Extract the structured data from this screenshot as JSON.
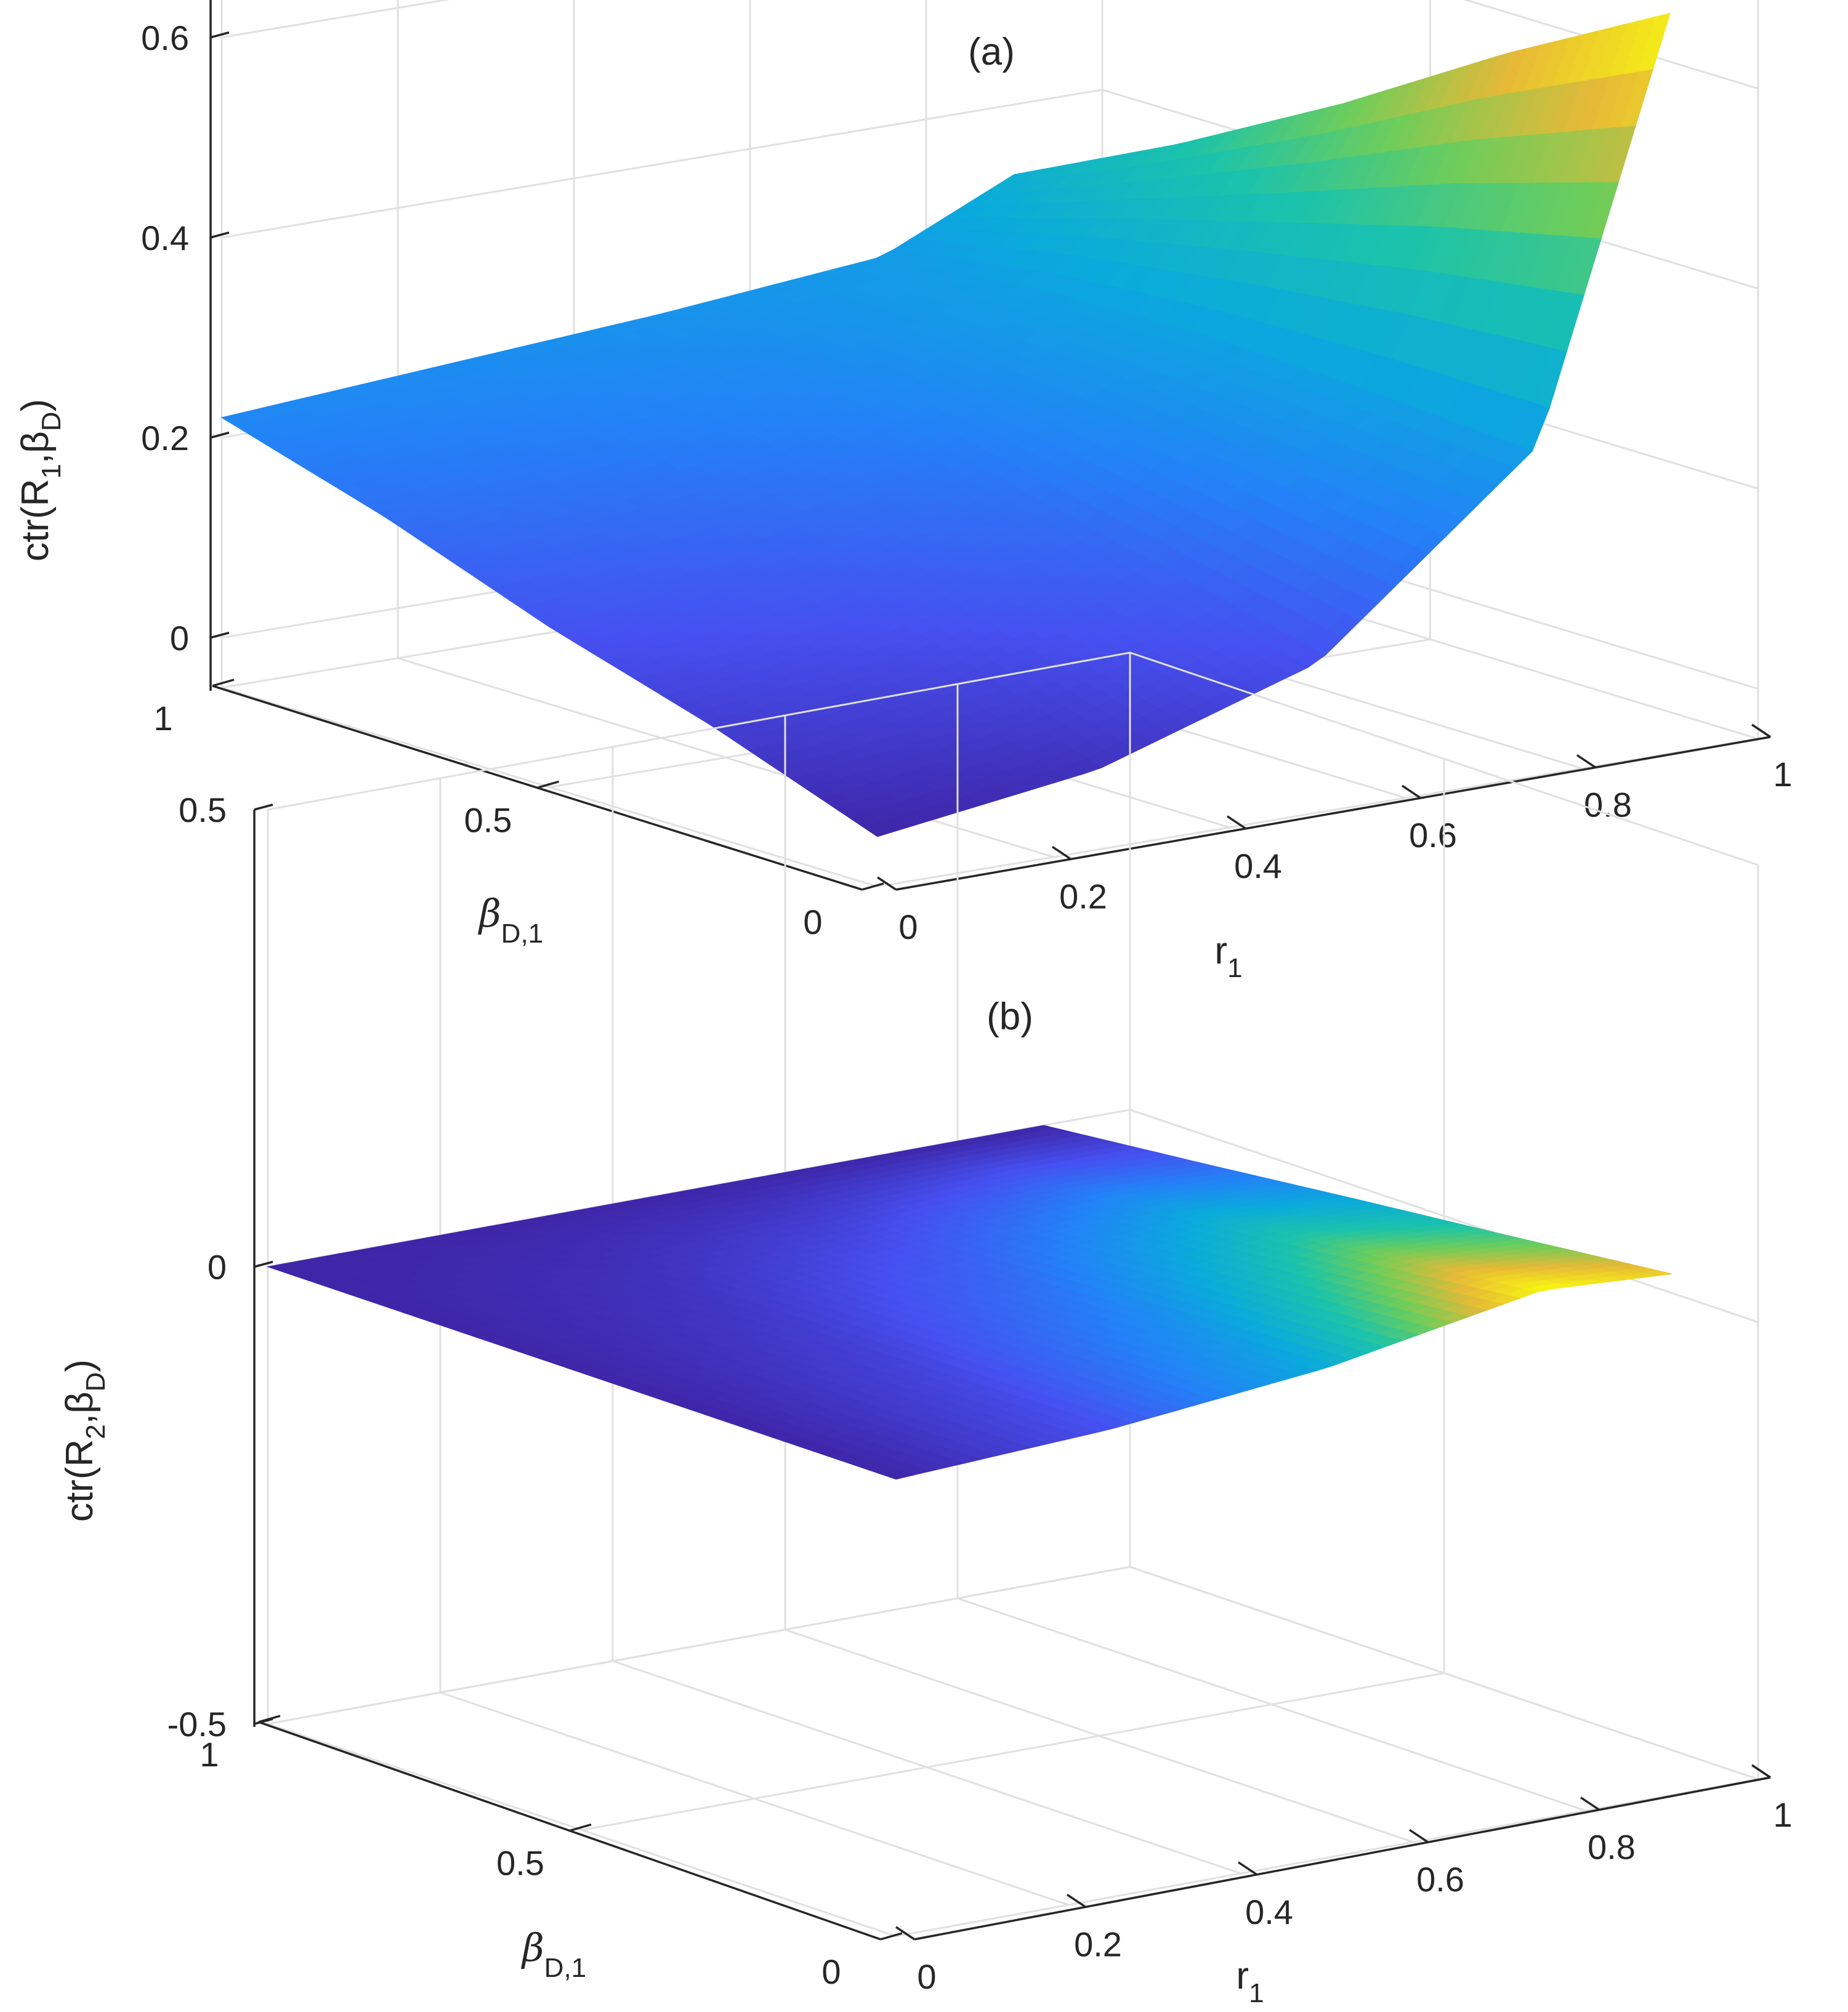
{
  "chart_data": [
    {
      "type": "surface3d",
      "title": "(a)",
      "xlabel": {
        "main": "r",
        "sub": "1"
      },
      "ylabel": {
        "main": "β",
        "sub": "D,1"
      },
      "zlabel": {
        "pre": "ctr(R",
        "sub1": "1",
        "mid": ",β",
        "sub2": "D",
        "post": ")"
      },
      "xlim": [
        0,
        1
      ],
      "ylim": [
        0,
        1
      ],
      "zlim": [
        -0.05,
        0.75
      ],
      "xticks": [
        0,
        0.2,
        0.4,
        0.6,
        0.8,
        1
      ],
      "xticklabels": [
        "0",
        "0.2",
        "0.4",
        "0.6",
        "0.8",
        "1"
      ],
      "yticks": [
        0,
        0.5,
        1
      ],
      "yticklabels": [
        "0",
        "0.5",
        "1"
      ],
      "zticks": [
        0,
        0.2,
        0.4,
        0.6
      ],
      "zticklabels": [
        "0",
        "0.2",
        "0.4",
        "0.6"
      ],
      "surface": {
        "x": [
          0,
          0.25,
          0.5,
          0.75,
          0.9
        ],
        "y": [
          0,
          0.25,
          0.5,
          0.75,
          1
        ],
        "z": [
          [
            0,
            0.06,
            0.11,
            0.17,
            0.22
          ],
          [
            0.03,
            0.085,
            0.135,
            0.19,
            0.235
          ],
          [
            0.1,
            0.14,
            0.18,
            0.22,
            0.25
          ],
          [
            0.28,
            0.29,
            0.295,
            0.29,
            0.27
          ],
          [
            0.69,
            0.6,
            0.5,
            0.41,
            0.33
          ]
        ]
      },
      "colormap": "parula"
    },
    {
      "type": "surface3d",
      "title": "(b)",
      "xlabel": {
        "main": "r",
        "sub": "1"
      },
      "ylabel": {
        "main": "β",
        "sub": "D,1"
      },
      "zlabel": {
        "pre": "ctr(R",
        "sub1": "2",
        "mid": ",β",
        "sub2": "D",
        "post": ")"
      },
      "xlim": [
        0,
        1
      ],
      "ylim": [
        0,
        1
      ],
      "zlim": [
        -0.5,
        0.5
      ],
      "xticks": [
        0,
        0.2,
        0.4,
        0.6,
        0.8,
        1
      ],
      "xticklabels": [
        "0",
        "0.2",
        "0.4",
        "0.6",
        "0.8",
        "1"
      ],
      "yticks": [
        0,
        0.5,
        1
      ],
      "yticklabels": [
        "0",
        "0.5",
        "1"
      ],
      "zticks": [
        -0.5,
        0,
        0.5
      ],
      "zticklabels": [
        "-0.5",
        "0",
        "0.5"
      ],
      "surface": {
        "x": [
          0,
          0.25,
          0.5,
          0.75,
          0.9
        ],
        "y": [
          0,
          0.25,
          0.5,
          0.75,
          1
        ],
        "z": [
          [
            0,
            0,
            0,
            0,
            0
          ],
          [
            0.012,
            0.009,
            0.006,
            0.003,
            0
          ],
          [
            0.036,
            0.027,
            0.018,
            0.009,
            0
          ],
          [
            0.078,
            0.058,
            0.039,
            0.019,
            0
          ],
          [
            0.07,
            0.052,
            0.035,
            0.017,
            0
          ]
        ]
      },
      "colormap": "parula"
    }
  ]
}
